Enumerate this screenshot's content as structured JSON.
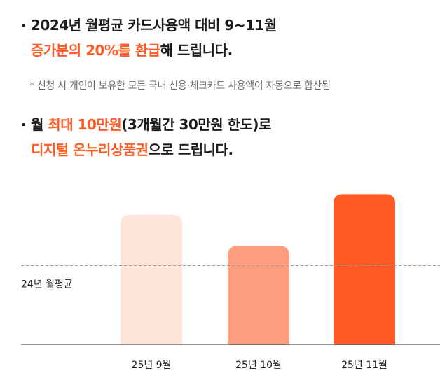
{
  "headline1": {
    "bullet": "·",
    "line1": "2024년 월평균 카드사용액 대비 9~11월",
    "line2_accent": "증가분의 20%를 환급",
    "line2_rest": "해 드립니다."
  },
  "footnote": "* 신청 시 개인이 보유한 모든 국내 신용·체크카드 사용액이 자동으로 합산됨",
  "headline2": {
    "bullet": "·",
    "line1_pre": "월 ",
    "line1_accent": "최대 10만원",
    "line1_rest": "(3개월간 30만원 한도)로",
    "line2_accent": "디지털 온누리상품권",
    "line2_rest": "으로 드립니다."
  },
  "colors": {
    "accent": "#ff5a26",
    "bar_sep": "#ffe4d9",
    "bar_oct": "#ff9d80",
    "bar_nov": "#ff5a26"
  },
  "chart_data": {
    "type": "bar",
    "categories": [
      "25년 9월",
      "25년 10월",
      "25년 11월"
    ],
    "values": [
      1.45,
      1.1,
      1.68
    ],
    "reference": {
      "label": "24년 월평균",
      "value": 0.88
    },
    "ylim": [
      0,
      1.8
    ],
    "grid": false,
    "legend": "none"
  }
}
